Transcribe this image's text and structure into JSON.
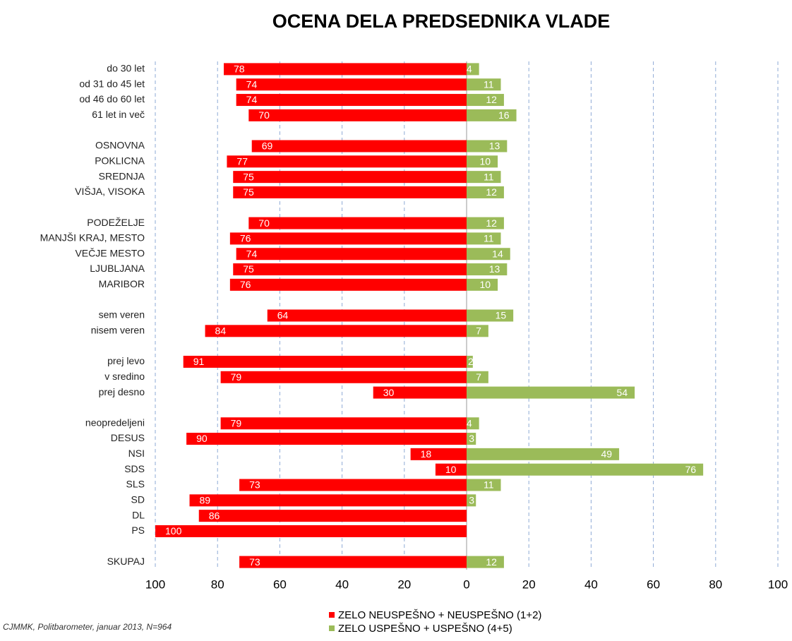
{
  "chart_data": {
    "type": "diverging-bar",
    "title": "OCENA DELA PREDSEDNIKA VLADE",
    "note": "CJMMK, Politbarometer, januar 2013, N=964",
    "categories": [
      "do 30 let",
      "od 31 do 45 let",
      "od 46 do 60 let",
      "61 let in več",
      null,
      "OSNOVNA",
      "POKLICNA",
      "SREDNJA",
      "VIŠJA, VISOKA",
      null,
      "PODEŽELJE",
      "MANJŠI KRAJ, MESTO",
      "VEČJE MESTO",
      "LJUBLJANA",
      "MARIBOR",
      null,
      "sem veren",
      "nisem veren",
      null,
      "prej levo",
      "v sredino",
      "prej desno",
      null,
      "neopredeljeni",
      "DESUS",
      "NSI",
      "SDS",
      "SLS",
      "SD",
      "DL",
      "PS",
      null,
      "SKUPAJ"
    ],
    "series": [
      {
        "name": "ZELO NEUSPEŠNO + NEUSPEŠNO (1+2)",
        "color": "#ff0000",
        "values": [
          -78,
          -74,
          -74,
          -70,
          null,
          -69,
          -77,
          -75,
          -75,
          null,
          -70,
          -76,
          -74,
          -75,
          -76,
          null,
          -64,
          -84,
          null,
          -91,
          -79,
          -30,
          null,
          -79,
          -90,
          -18,
          -10,
          -73,
          -89,
          -86,
          -100,
          null,
          -73
        ],
        "value_labels": [
          "78",
          "74",
          "74",
          "70",
          null,
          "69",
          "77",
          "75",
          "75",
          null,
          "70",
          "76",
          "74",
          "75",
          "76",
          null,
          "64",
          "84",
          null,
          "91",
          "79",
          "30",
          null,
          "79",
          "90",
          "18",
          "10",
          "73",
          "89",
          "86",
          "100",
          null,
          "73"
        ]
      },
      {
        "name": "ZELO USPEŠNO + USPEŠNO (4+5)",
        "color": "#9bbb59",
        "values": [
          4,
          11,
          12,
          16,
          null,
          13,
          10,
          11,
          12,
          null,
          12,
          11,
          14,
          13,
          10,
          null,
          15,
          7,
          null,
          2,
          7,
          54,
          null,
          4,
          3,
          49,
          76,
          11,
          3,
          null,
          null,
          null,
          12
        ]
      }
    ],
    "xlim": [
      -100,
      100
    ],
    "xticks": [
      {
        "value": -100,
        "label": "100"
      },
      {
        "value": -80,
        "label": "80"
      },
      {
        "value": -60,
        "label": "60"
      },
      {
        "value": -40,
        "label": "40"
      },
      {
        "value": -20,
        "label": "20"
      },
      0,
      20,
      40,
      60,
      80,
      100
    ],
    "grid": true
  }
}
